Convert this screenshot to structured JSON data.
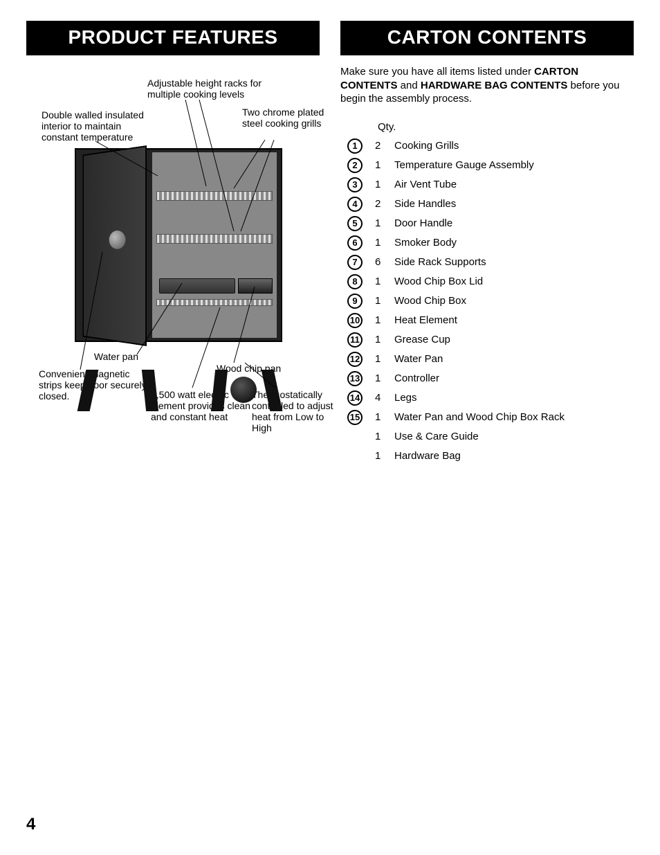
{
  "page_number": "4",
  "left": {
    "header": "PRODUCT FEATURES",
    "callouts": {
      "adjustable_racks": "Adjustable height racks for multiple cooking levels",
      "double_walled": "Double walled insulated interior to maintain constant temperature",
      "chrome_grills": "Two chrome plated steel cooking grills",
      "water_pan": "Water pan",
      "wood_chip_pan": "Wood chip pan",
      "magnetic_strips": "Convenient magnetic strips keep door securely closed.",
      "electric_element": "1,500 watt electric element provides clean and constant heat",
      "thermostat": "Thermostatically controlled to adjust heat from Low to High"
    }
  },
  "right": {
    "header": "CARTON CONTENTS",
    "intro_pre": "Make sure you have all items listed under ",
    "intro_b1": "CARTON CONTENTS",
    "intro_mid": " and ",
    "intro_b2": "HARDWARE BAG CONTENTS",
    "intro_post": " before you begin the assembly process.",
    "qty_label": "Qty.",
    "items": [
      {
        "n": "1",
        "qty": "2",
        "desc": "Cooking Grills"
      },
      {
        "n": "2",
        "qty": "1",
        "desc": "Temperature Gauge Assembly"
      },
      {
        "n": "3",
        "qty": "1",
        "desc": "Air Vent Tube"
      },
      {
        "n": "4",
        "qty": "2",
        "desc": "Side Handles"
      },
      {
        "n": "5",
        "qty": "1",
        "desc": "Door Handle"
      },
      {
        "n": "6",
        "qty": "1",
        "desc": "Smoker Body"
      },
      {
        "n": "7",
        "qty": "6",
        "desc": "Side Rack Supports"
      },
      {
        "n": "8",
        "qty": "1",
        "desc": "Wood Chip Box Lid"
      },
      {
        "n": "9",
        "qty": "1",
        "desc": "Wood Chip Box"
      },
      {
        "n": "10",
        "qty": "1",
        "desc": "Heat Element"
      },
      {
        "n": "11",
        "qty": "1",
        "desc": "Grease Cup"
      },
      {
        "n": "12",
        "qty": "1",
        "desc": "Water Pan"
      },
      {
        "n": "13",
        "qty": "1",
        "desc": "Controller"
      },
      {
        "n": "14",
        "qty": "4",
        "desc": "Legs"
      },
      {
        "n": "15",
        "qty": "1",
        "desc": "Water Pan and Wood Chip Box Rack"
      },
      {
        "n": "",
        "qty": "1",
        "desc": "Use & Care Guide"
      },
      {
        "n": "",
        "qty": "1",
        "desc": "Hardware Bag"
      }
    ]
  },
  "style": {
    "header_bg": "#000000",
    "header_fg": "#ffffff",
    "header_fontsize": 28,
    "body_fontsize": 15,
    "callout_fontsize": 14,
    "circle_border": "#000000"
  }
}
